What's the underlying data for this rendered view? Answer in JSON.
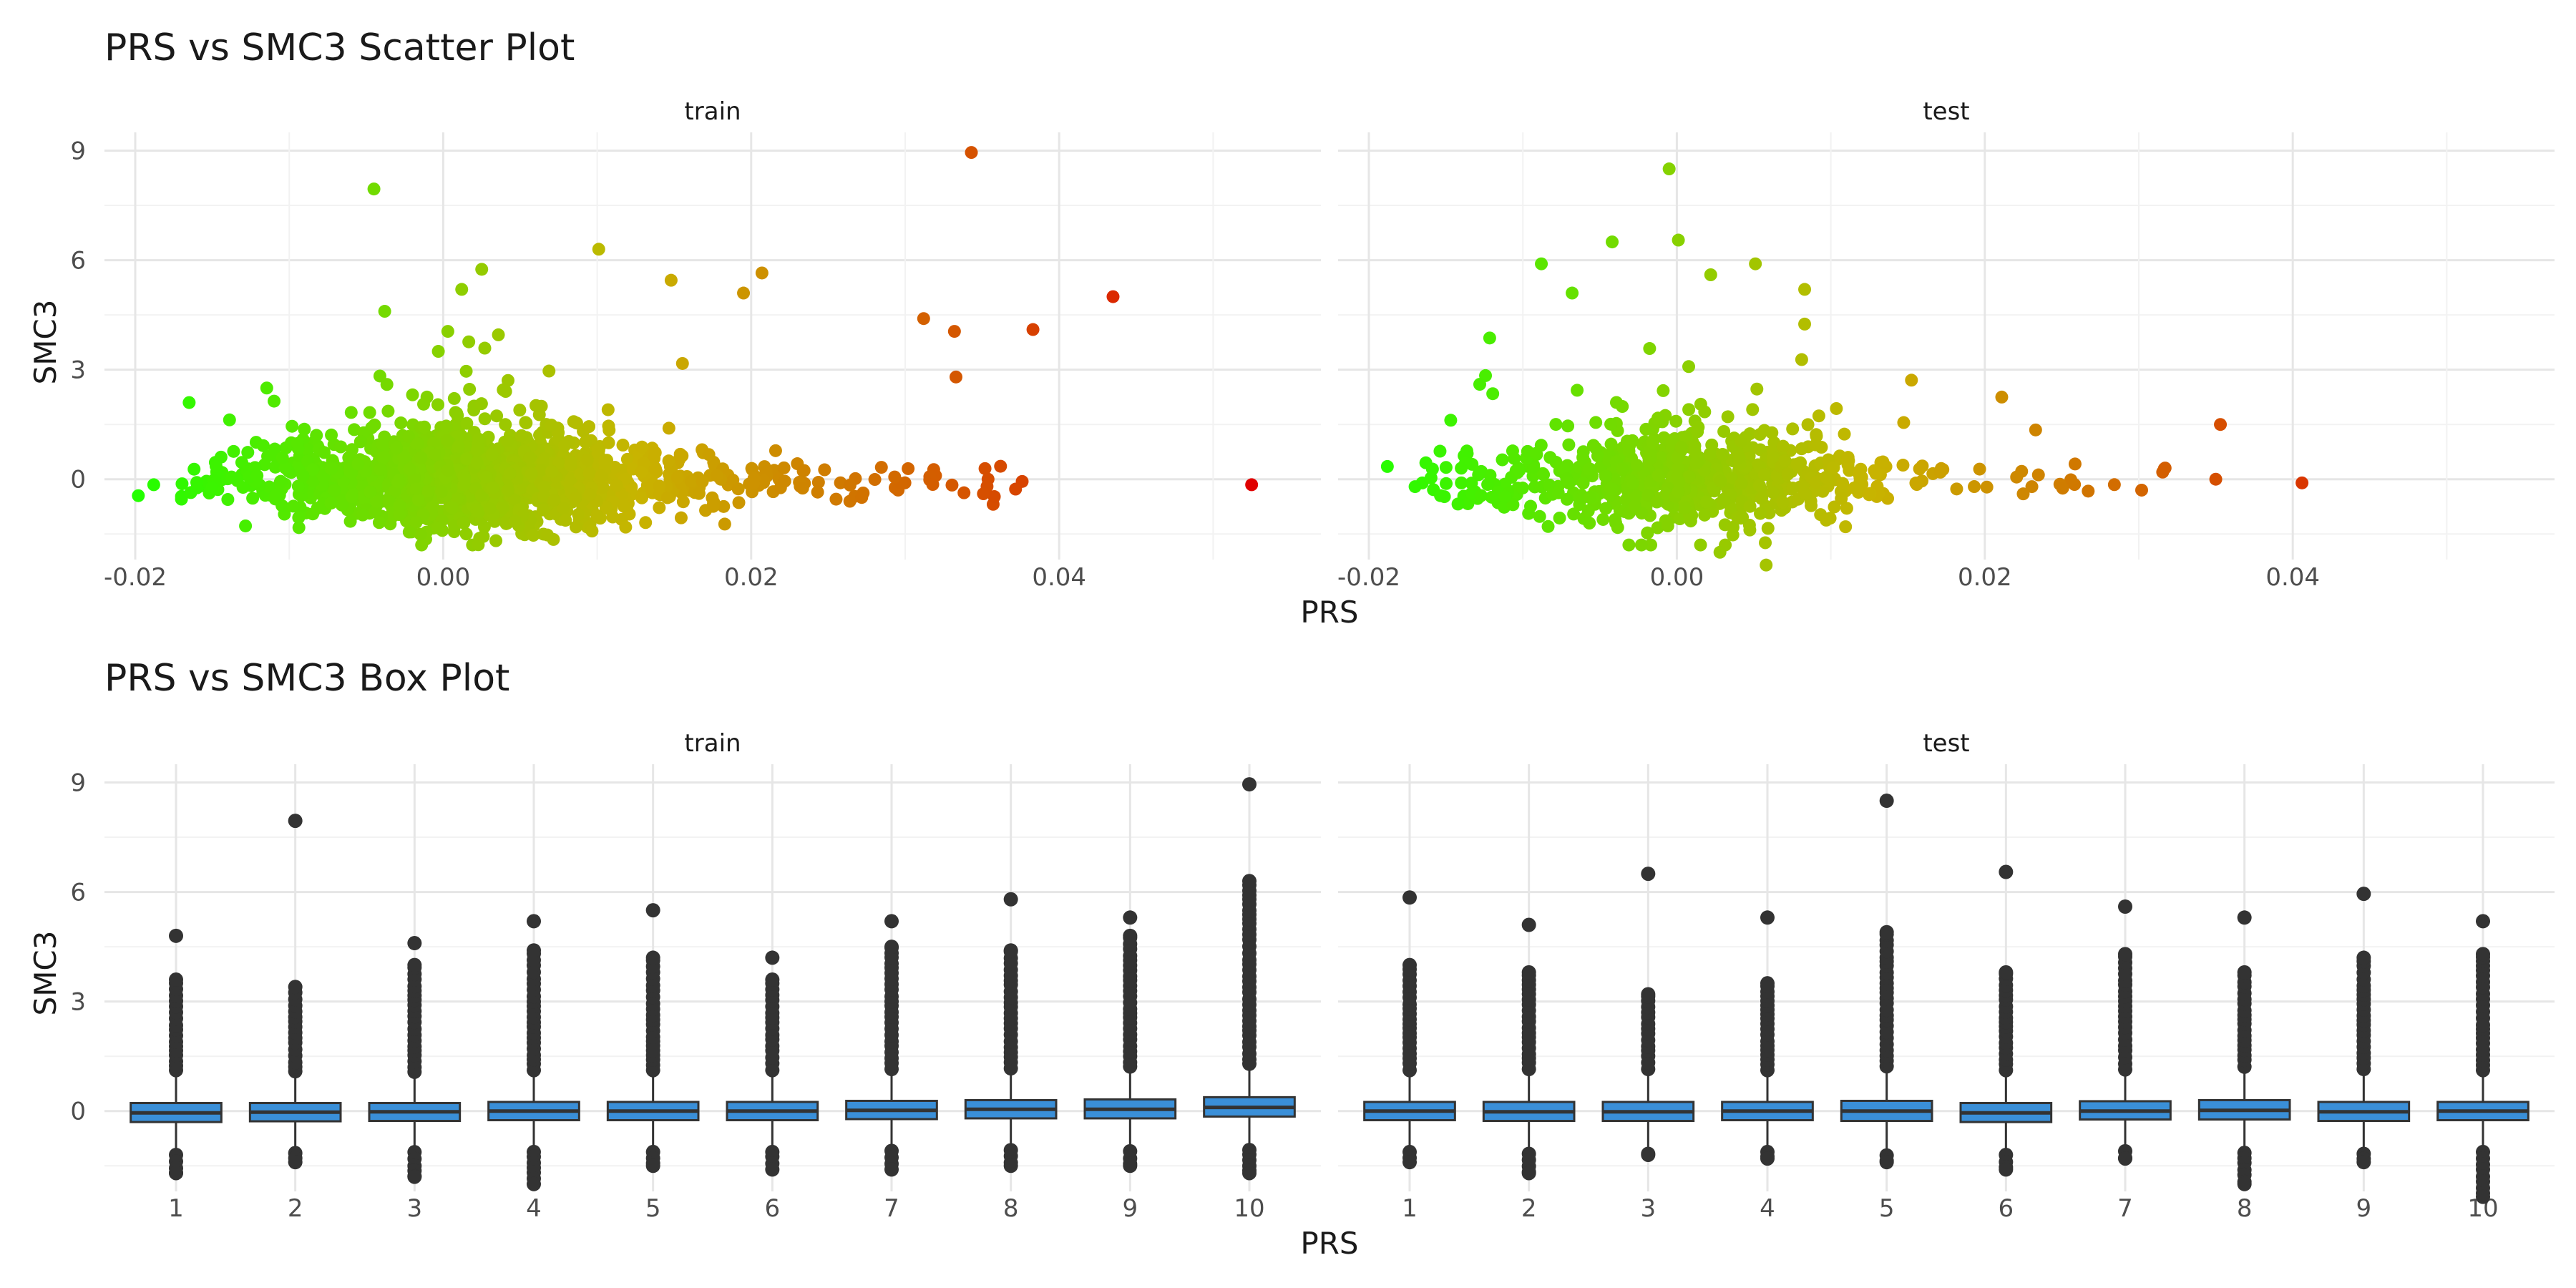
{
  "chart_data": [
    {
      "type": "scatter",
      "title": "PRS vs SMC3 Scatter Plot",
      "xlabel": "PRS",
      "ylabel": "SMC3",
      "facets": [
        "train",
        "test"
      ],
      "xlim": [
        -0.022,
        0.057
      ],
      "ylim": [
        -2.2,
        9.5
      ],
      "x_ticks": [
        -0.02,
        0.0,
        0.02,
        0.04
      ],
      "x_tick_labels": [
        "-0.02",
        "0.00",
        "0.02",
        "0.04"
      ],
      "y_ticks": [
        0,
        3,
        6,
        9
      ],
      "y_tick_labels": [
        "0",
        "3",
        "6",
        "9"
      ],
      "color_scale": {
        "low": "#22ff00",
        "mid": "#c8b400",
        "high": "#e00000",
        "by": "PRS"
      },
      "grid": true,
      "panels": [
        {
          "facet": "train",
          "notable_points": [
            {
              "x": -0.0198,
              "y": -0.45
            },
            {
              "x": -0.0188,
              "y": -0.15
            },
            {
              "x": -0.0165,
              "y": 2.1
            },
            {
              "x": -0.0045,
              "y": 7.95
            },
            {
              "x": -0.0038,
              "y": 4.6
            },
            {
              "x": 0.0003,
              "y": 4.05
            },
            {
              "x": 0.0025,
              "y": 5.75
            },
            {
              "x": 0.0012,
              "y": 5.2
            },
            {
              "x": 0.0101,
              "y": 6.3
            },
            {
              "x": 0.0148,
              "y": 5.45
            },
            {
              "x": 0.0195,
              "y": 5.1
            },
            {
              "x": 0.0207,
              "y": 5.65
            },
            {
              "x": 0.0312,
              "y": 4.4
            },
            {
              "x": 0.0332,
              "y": 4.05
            },
            {
              "x": 0.0333,
              "y": 2.8
            },
            {
              "x": 0.0343,
              "y": 8.95
            },
            {
              "x": 0.0383,
              "y": 4.1
            },
            {
              "x": 0.0435,
              "y": 5.0
            },
            {
              "x": 0.0525,
              "y": -0.15
            }
          ],
          "bulk": {
            "x_range": [
              -0.017,
              0.038
            ],
            "x_center": 0.002,
            "y_center": 0.0,
            "y_spread": 0.8,
            "n_points": 1600
          }
        },
        {
          "facet": "test",
          "notable_points": [
            {
              "x": -0.0188,
              "y": 0.35
            },
            {
              "x": -0.0128,
              "y": 2.6
            },
            {
              "x": -0.0088,
              "y": 5.9
            },
            {
              "x": -0.0068,
              "y": 5.1
            },
            {
              "x": -0.0042,
              "y": 6.5
            },
            {
              "x": -0.0005,
              "y": 8.5
            },
            {
              "x": 0.0001,
              "y": 6.55
            },
            {
              "x": 0.0022,
              "y": 5.6
            },
            {
              "x": 0.0051,
              "y": 5.9
            },
            {
              "x": 0.0083,
              "y": 5.2
            },
            {
              "x": 0.0083,
              "y": 4.25
            },
            {
              "x": 0.0058,
              "y": -2.35
            },
            {
              "x": 0.0028,
              "y": -2.0
            },
            {
              "x": 0.0211,
              "y": 2.25
            },
            {
              "x": 0.0233,
              "y": 1.35
            },
            {
              "x": 0.0353,
              "y": 1.5
            },
            {
              "x": 0.035,
              "y": 0.0
            },
            {
              "x": 0.0406,
              "y": -0.1
            }
          ],
          "bulk": {
            "x_range": [
              -0.017,
              0.033
            ],
            "x_center": 0.0,
            "y_center": 0.0,
            "y_spread": 0.75,
            "n_points": 700
          }
        }
      ]
    },
    {
      "type": "box",
      "title": "PRS vs SMC3 Box Plot",
      "xlabel": "PRS",
      "ylabel": "SMC3",
      "facets": [
        "train",
        "test"
      ],
      "categories": [
        "1",
        "2",
        "3",
        "4",
        "5",
        "6",
        "7",
        "8",
        "9",
        "10"
      ],
      "ylim": [
        -2.2,
        9.5
      ],
      "y_ticks": [
        0,
        3,
        6,
        9
      ],
      "y_tick_labels": [
        "0",
        "3",
        "6",
        "9"
      ],
      "box_fill": "#3a8fd8",
      "grid": true,
      "panels": [
        {
          "facet": "train",
          "boxes": [
            {
              "category": "1",
              "q1": -0.3,
              "median": -0.05,
              "q3": 0.22,
              "outlier_max": 4.8,
              "upper_cluster_top": 3.6,
              "outlier_min": -1.7
            },
            {
              "category": "2",
              "q1": -0.28,
              "median": -0.03,
              "q3": 0.22,
              "outlier_max": 7.95,
              "upper_cluster_top": 3.4,
              "outlier_min": -1.4
            },
            {
              "category": "3",
              "q1": -0.27,
              "median": -0.02,
              "q3": 0.22,
              "outlier_max": 4.6,
              "upper_cluster_top": 4.0,
              "outlier_min": -1.8
            },
            {
              "category": "4",
              "q1": -0.25,
              "median": 0.0,
              "q3": 0.25,
              "outlier_max": 5.2,
              "upper_cluster_top": 4.4,
              "outlier_min": -2.0
            },
            {
              "category": "5",
              "q1": -0.25,
              "median": 0.0,
              "q3": 0.25,
              "outlier_max": 5.5,
              "upper_cluster_top": 4.2,
              "outlier_min": -1.5
            },
            {
              "category": "6",
              "q1": -0.25,
              "median": 0.0,
              "q3": 0.25,
              "outlier_max": 4.2,
              "upper_cluster_top": 3.6,
              "outlier_min": -1.6
            },
            {
              "category": "7",
              "q1": -0.22,
              "median": 0.02,
              "q3": 0.28,
              "outlier_max": 5.2,
              "upper_cluster_top": 4.5,
              "outlier_min": -1.6
            },
            {
              "category": "8",
              "q1": -0.2,
              "median": 0.05,
              "q3": 0.3,
              "outlier_max": 5.8,
              "upper_cluster_top": 4.4,
              "outlier_min": -1.5
            },
            {
              "category": "9",
              "q1": -0.2,
              "median": 0.05,
              "q3": 0.32,
              "outlier_max": 5.3,
              "upper_cluster_top": 4.8,
              "outlier_min": -1.5
            },
            {
              "category": "10",
              "q1": -0.15,
              "median": 0.1,
              "q3": 0.38,
              "outlier_max": 8.95,
              "upper_cluster_top": 6.3,
              "outlier_min": -1.7
            }
          ]
        },
        {
          "facet": "test",
          "boxes": [
            {
              "category": "1",
              "q1": -0.25,
              "median": 0.0,
              "q3": 0.25,
              "outlier_max": 5.85,
              "upper_cluster_top": 4.0,
              "outlier_min": -1.4
            },
            {
              "category": "2",
              "q1": -0.27,
              "median": -0.02,
              "q3": 0.25,
              "outlier_max": 5.1,
              "upper_cluster_top": 3.8,
              "outlier_min": -1.7
            },
            {
              "category": "3",
              "q1": -0.27,
              "median": -0.02,
              "q3": 0.25,
              "outlier_max": 6.5,
              "upper_cluster_top": 3.2,
              "outlier_min": -1.2
            },
            {
              "category": "4",
              "q1": -0.25,
              "median": 0.0,
              "q3": 0.25,
              "outlier_max": 5.3,
              "upper_cluster_top": 3.5,
              "outlier_min": -1.3
            },
            {
              "category": "5",
              "q1": -0.27,
              "median": 0.0,
              "q3": 0.28,
              "outlier_max": 8.5,
              "upper_cluster_top": 4.9,
              "outlier_min": -1.4
            },
            {
              "category": "6",
              "q1": -0.3,
              "median": -0.05,
              "q3": 0.22,
              "outlier_max": 6.55,
              "upper_cluster_top": 3.8,
              "outlier_min": -1.6
            },
            {
              "category": "7",
              "q1": -0.23,
              "median": 0.0,
              "q3": 0.27,
              "outlier_max": 5.6,
              "upper_cluster_top": 4.3,
              "outlier_min": -1.3
            },
            {
              "category": "8",
              "q1": -0.23,
              "median": 0.02,
              "q3": 0.3,
              "outlier_max": 5.3,
              "upper_cluster_top": 3.8,
              "outlier_min": -2.0
            },
            {
              "category": "9",
              "q1": -0.27,
              "median": -0.02,
              "q3": 0.25,
              "outlier_max": 5.95,
              "upper_cluster_top": 4.2,
              "outlier_min": -1.4
            },
            {
              "category": "10",
              "q1": -0.25,
              "median": 0.0,
              "q3": 0.25,
              "outlier_max": 5.2,
              "upper_cluster_top": 4.3,
              "outlier_min": -2.35
            }
          ]
        }
      ]
    }
  ]
}
